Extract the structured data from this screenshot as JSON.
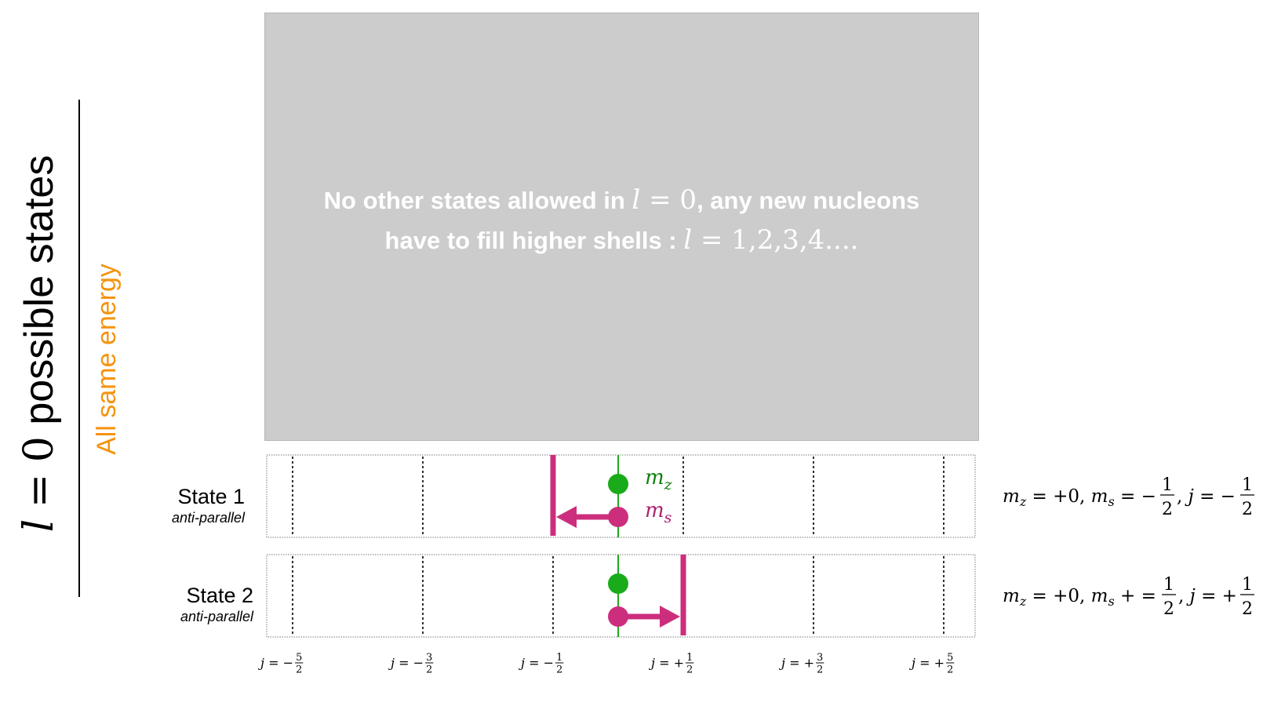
{
  "side_title": {
    "var": "l",
    "equals": "=",
    "value": "0",
    "text": "possible states"
  },
  "side_subtitle": {
    "prefix": "All",
    "highlight": "same energy",
    "highlight_color": "#f5930f"
  },
  "message": {
    "line1_text": "No other states allowed in",
    "line1_var": "l",
    "line1_eq": "=",
    "line1_val": "0",
    "line1_suffix": ", any new nucleons",
    "line2_text": "have to fill higher shells :",
    "line2_var": "l",
    "line2_eq": "=",
    "line2_val": "1,2,3,4...."
  },
  "states": [
    {
      "name": "State 1",
      "sub": "anti-parallel",
      "mz": "+0",
      "ms_sign": "−",
      "j_sign": "−",
      "ms_direction": -1
    },
    {
      "name": "State 2",
      "sub": "anti-parallel",
      "mz": "+0",
      "ms_sign": "+ =",
      "j_sign": "+",
      "ms_direction": 1
    }
  ],
  "axis": {
    "ticks": [
      {
        "sign": "−",
        "num": "5",
        "den": "2",
        "value": -2.5
      },
      {
        "sign": "−",
        "num": "3",
        "den": "2",
        "value": -1.5
      },
      {
        "sign": "−",
        "num": "1",
        "den": "2",
        "value": -0.5
      },
      {
        "sign": "+",
        "num": "1",
        "den": "2",
        "value": 0.5
      },
      {
        "sign": "+",
        "num": "3",
        "den": "2",
        "value": 1.5
      },
      {
        "sign": "+",
        "num": "5",
        "den": "2",
        "value": 2.5
      }
    ],
    "var": "j",
    "eq": "="
  },
  "legend": {
    "mz_sym": "m",
    "mz_sub": "z",
    "ms_sym": "m",
    "ms_sub": "s",
    "mz_color": "#1aab1a",
    "ms_color": "#cc2e7d",
    "mz_text_color": "#108010",
    "ms_text_color": "#b0226f"
  },
  "equation": {
    "m": "m",
    "z": "z",
    "s": "s",
    "j": "j",
    "eq": "=",
    "half_num": "1",
    "half_den": "2",
    "sep": ","
  }
}
